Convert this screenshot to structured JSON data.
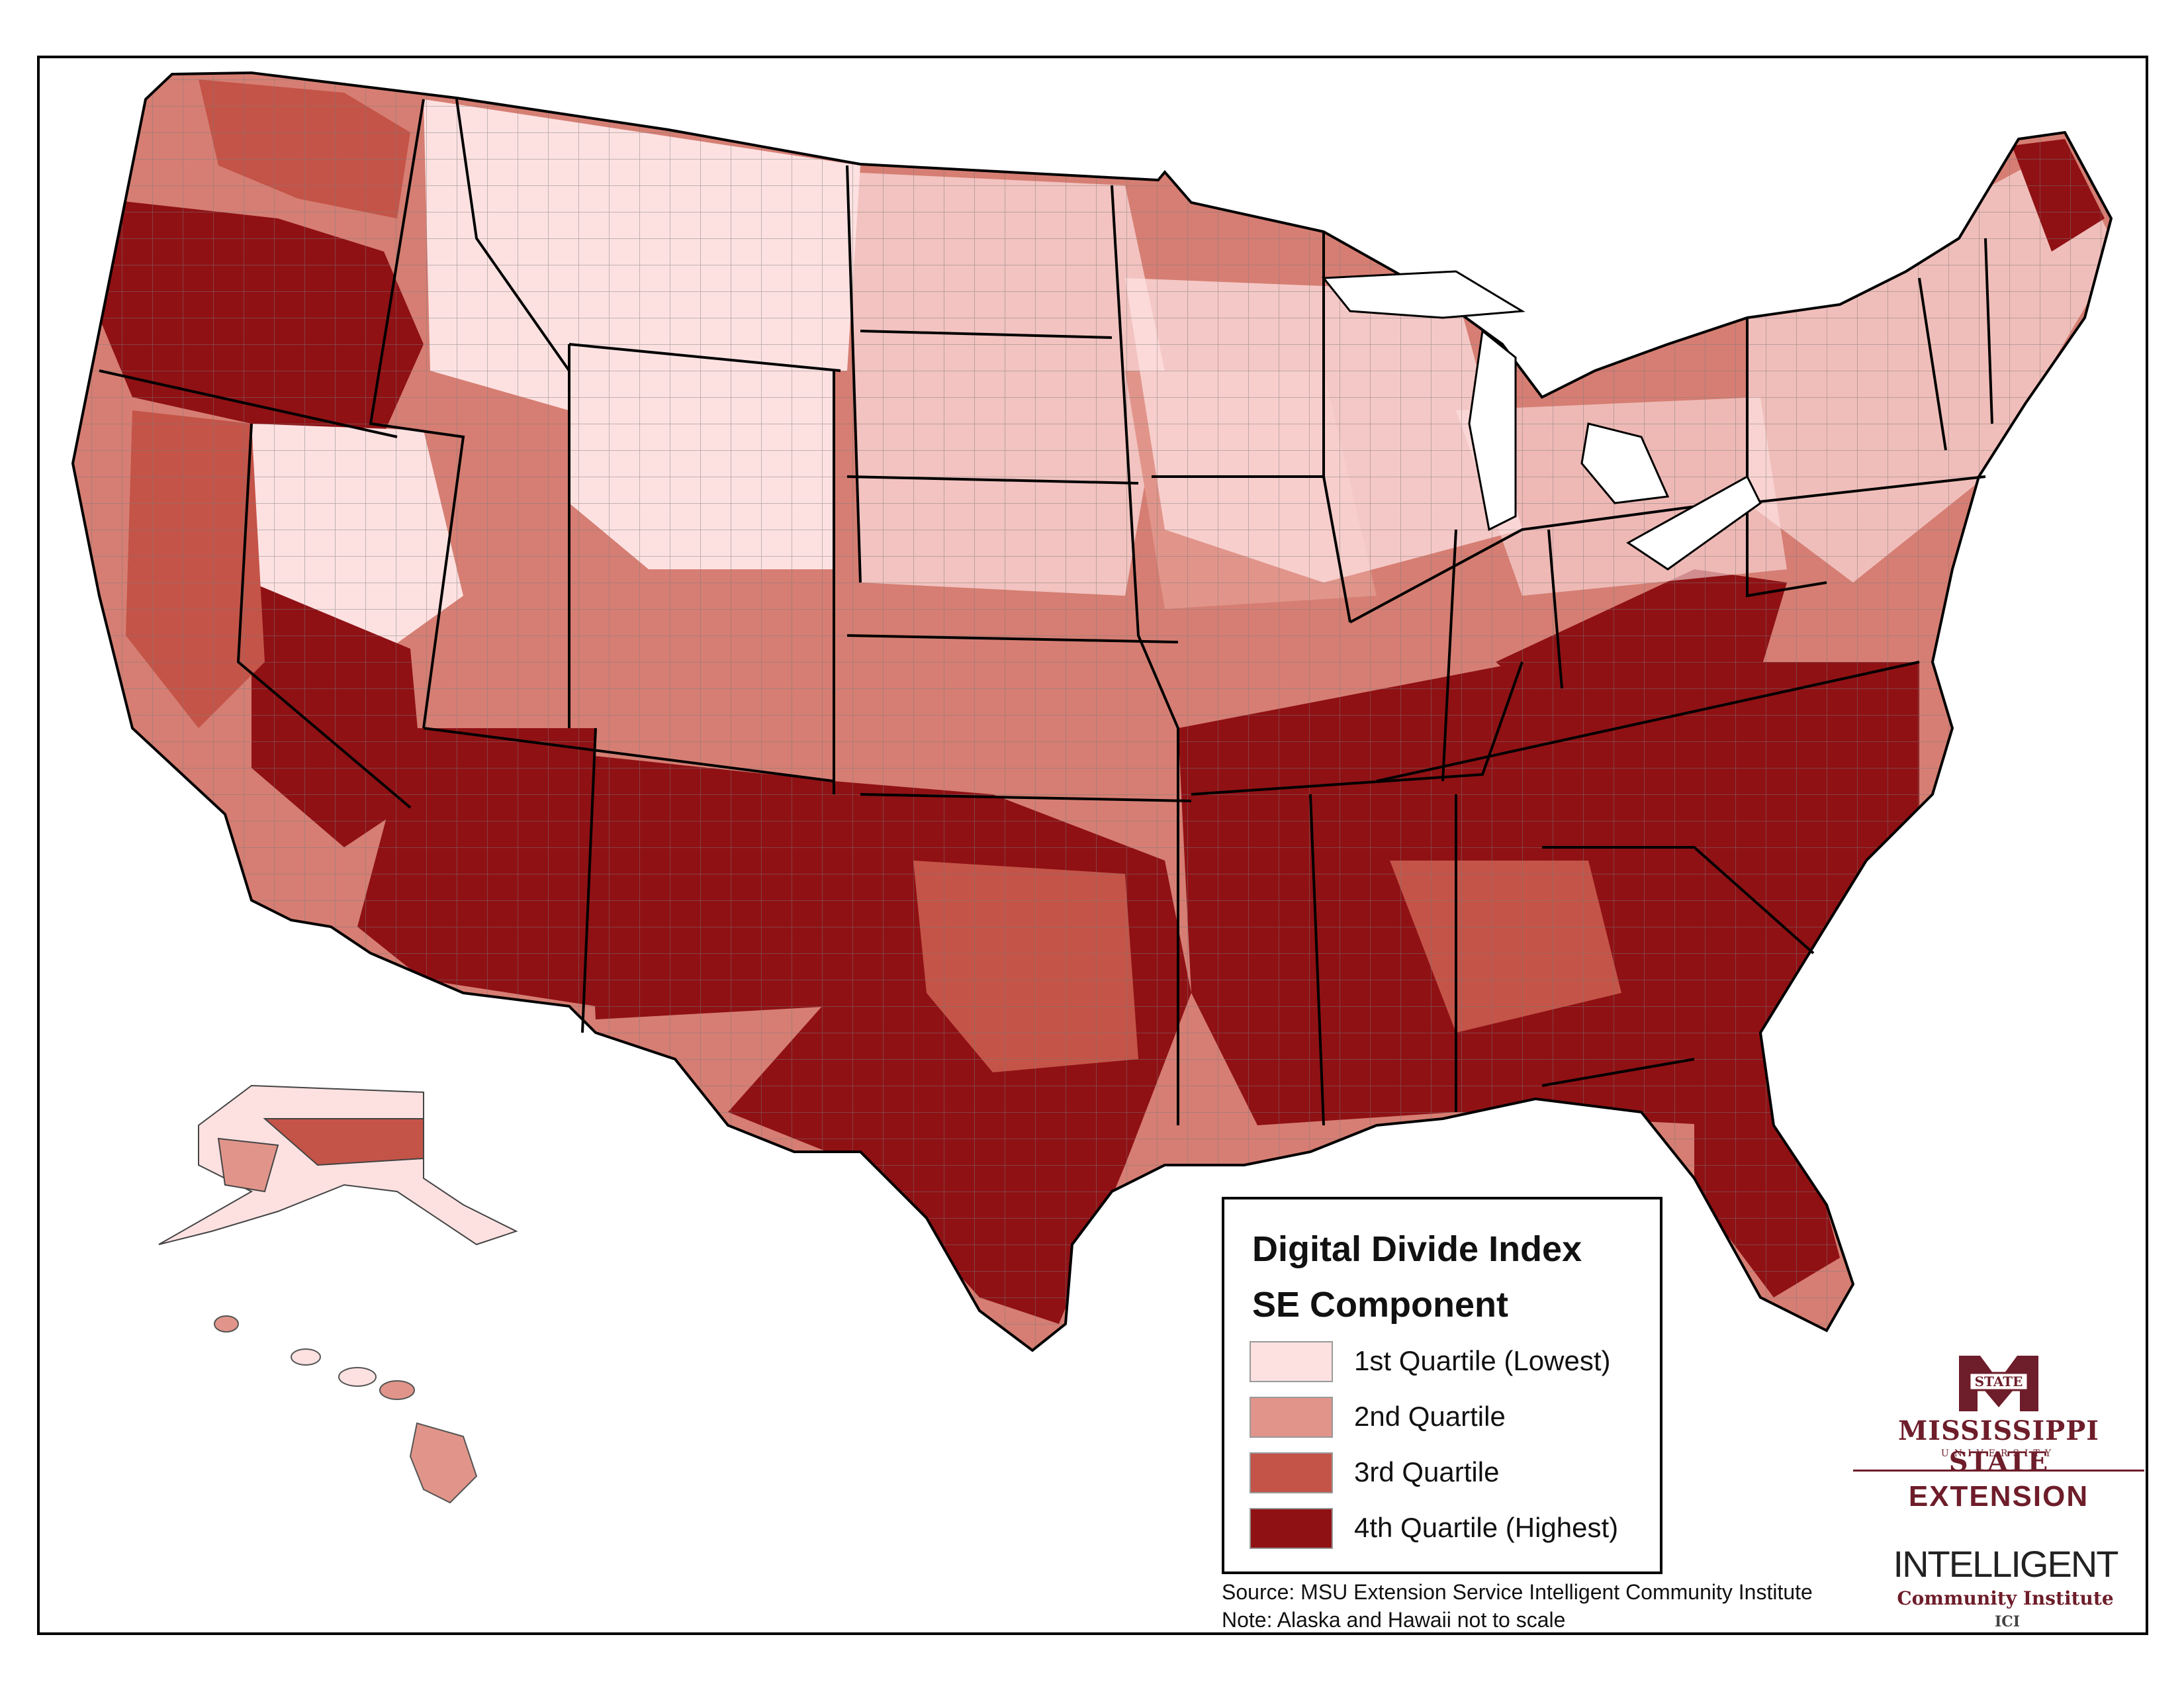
{
  "legend": {
    "title": "Digital Divide Index",
    "subtitle": "SE Component",
    "items": [
      {
        "label": "1st Quartile (Lowest)",
        "color": "#fde1e1"
      },
      {
        "label": "2nd Quartile",
        "color": "#e1958a"
      },
      {
        "label": "3rd Quartile",
        "color": "#c45448"
      },
      {
        "label": "4th Quartile (Highest)",
        "color": "#8f1114"
      }
    ]
  },
  "source_note": {
    "source": "Source: MSU Extension Service Intelligent Community Institute",
    "note": "Note: Alaska and Hawaii not to scale"
  },
  "logos": {
    "msu_badge": "STATE",
    "msu_name": "MISSISSIPPI STATE",
    "msu_university": "UNIVERSITY",
    "msu_extension": "EXTENSION",
    "ici_name": "INTELLIGENT",
    "ici_sub": "Community Institute",
    "ici_mark": "ICI"
  },
  "map": {
    "border_color": "#000000",
    "county_line_color": "#777777"
  }
}
